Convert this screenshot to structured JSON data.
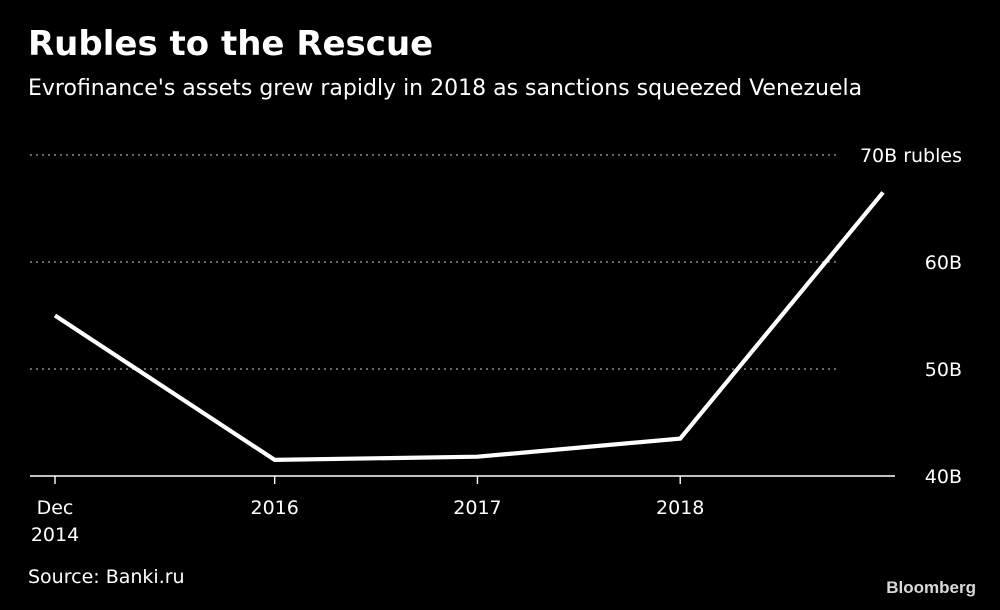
{
  "header": {
    "title": "Rubles to the Rescue",
    "subtitle": "Evrofinance's assets grew rapidly in 2018 as sanctions squeezed Venezuela"
  },
  "footer": {
    "source": "Source: Banki.ru",
    "brand": "Bloomberg"
  },
  "colors": {
    "background": "#000000",
    "line": "#ffffff",
    "grid": "#8a8a8a",
    "text": "#ffffff"
  },
  "chart_data": {
    "type": "line",
    "title": "Rubles to the Rescue",
    "subtitle": "Evrofinance's assets grew rapidly in 2018 as sanctions squeezed Venezuela",
    "xlabel": "",
    "ylabel": "",
    "unit": "billion rubles",
    "x": [
      "2014-12",
      "2016-01",
      "2017-01",
      "2018-01",
      "2019-01"
    ],
    "xlim": [
      "2014-12",
      "2019-01"
    ],
    "ylim": [
      40,
      70
    ],
    "y_ticks": [
      {
        "value": 40,
        "label": "40B"
      },
      {
        "value": 50,
        "label": "50B"
      },
      {
        "value": 60,
        "label": "60B"
      },
      {
        "value": 70,
        "label": "70B rubles"
      }
    ],
    "x_ticks": [
      {
        "value": "2014-12",
        "label": [
          "Dec",
          "2014"
        ]
      },
      {
        "value": "2016-01",
        "label": [
          "2016"
        ]
      },
      {
        "value": "2017-01",
        "label": [
          "2017"
        ]
      },
      {
        "value": "2018-01",
        "label": [
          "2018"
        ]
      }
    ],
    "grid": true,
    "grid_style": "dotted",
    "y_axis_side": "right",
    "legend": "none",
    "series": [
      {
        "values": [
          55.0,
          41.5,
          41.8,
          43.5,
          66.5
        ]
      }
    ]
  }
}
